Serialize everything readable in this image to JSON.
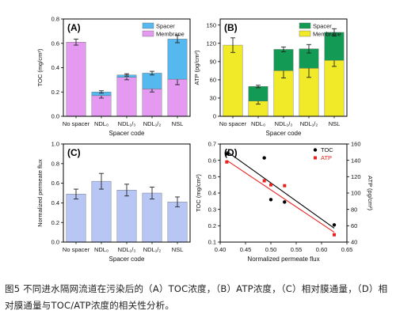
{
  "caption": "图5 不同进水隔网流道在污染后的（A）TOC浓度，（B）ATP浓度，（C）相对膜通量，（D）相对膜通量与TOC/ATP浓度的相关性分析。",
  "chart_data": [
    {
      "panel_label": "(A)",
      "type": "bar",
      "stacked": true,
      "categories": [
        "No spacer",
        "NDL₀",
        "NDL₁/₃",
        "NDL₁/₂",
        "NSL"
      ],
      "series": [
        {
          "name": "Membrane",
          "color": "#e49af0",
          "values": [
            0.61,
            0.17,
            0.32,
            0.225,
            0.305
          ],
          "error": [
            0.025,
            0.02,
            0.02,
            0.025,
            0.045
          ]
        },
        {
          "name": "Spacer",
          "color": "#55b8ee",
          "values": [
            0,
            0.03,
            0.02,
            0.13,
            0.33
          ],
          "error": [
            0,
            0.01,
            0.01,
            0.015,
            0.03
          ]
        }
      ],
      "xlabel": "Spacer code",
      "ylabel": "TOC (mg/cm²)",
      "ylim": [
        0,
        0.8
      ],
      "yticks": [
        "0.0",
        "0.2",
        "0.4",
        "0.6",
        "0.8"
      ],
      "legend": "top-right"
    },
    {
      "panel_label": "(B)",
      "type": "bar",
      "stacked": true,
      "categories": [
        "No spacer",
        "NDL₀",
        "NDL₁/₃",
        "NDL₁/₂",
        "NSL"
      ],
      "series": [
        {
          "name": "Membrane",
          "color": "#f0ea28",
          "values": [
            117,
            25,
            75,
            79,
            92
          ],
          "error": [
            12,
            5,
            12,
            15,
            10
          ]
        },
        {
          "name": "Spacer",
          "color": "#139a54",
          "values": [
            0,
            24,
            35,
            32,
            46
          ],
          "error": [
            0,
            2,
            4,
            7,
            6
          ]
        }
      ],
      "xlabel": "Spacer code",
      "ylabel": "ATP (pg/cm²)",
      "ylim": [
        0,
        160
      ],
      "yticks": [
        "0",
        "30",
        "60",
        "90",
        "120",
        "150"
      ],
      "legend": "top-right"
    },
    {
      "panel_label": "(C)",
      "type": "bar",
      "categories": [
        "No spacer",
        "NDL₀",
        "NDL₁/₃",
        "NDL₁/₂",
        "NSL"
      ],
      "series": [
        {
          "name": "",
          "color": "#b7c6f4",
          "values": [
            0.49,
            0.62,
            0.53,
            0.5,
            0.41
          ],
          "error": [
            0.05,
            0.08,
            0.06,
            0.06,
            0.05
          ]
        }
      ],
      "xlabel": "Spacer code",
      "ylabel": "Normalized permeate flux",
      "ylim": [
        0,
        1.0
      ],
      "yticks": [
        "0.0",
        "0.2",
        "0.4",
        "0.6",
        "0.8",
        "1.0"
      ]
    },
    {
      "panel_label": "(D)",
      "type": "scatter",
      "xlabel": "Normalized permeate flux",
      "ylabel": "TOC (mg/cm²)",
      "ylabel_right": "ATP (pg/cm²)",
      "xlim": [
        0.4,
        0.65
      ],
      "ylim": [
        0.1,
        0.7
      ],
      "ylim_right": [
        40,
        160
      ],
      "xticks": [
        "0.40",
        "0.45",
        "0.50",
        "0.55",
        "0.60",
        "0.65"
      ],
      "yticks": [
        "0.1",
        "0.2",
        "0.3",
        "0.4",
        "0.5",
        "0.6",
        "0.7"
      ],
      "yticks_right": [
        "40",
        "60",
        "80",
        "100",
        "120",
        "140",
        "160"
      ],
      "series": [
        {
          "name": "TOC",
          "color": "#000000",
          "marker": "circle",
          "axis": "left",
          "x": [
            0.413,
            0.487,
            0.5,
            0.527,
            0.625
          ],
          "y": [
            0.64,
            0.615,
            0.36,
            0.345,
            0.205
          ],
          "fit": [
            [
              0.413,
              0.655
            ],
            [
              0.625,
              0.185
            ]
          ]
        },
        {
          "name": "ATP",
          "color": "#e8221e",
          "marker": "square",
          "axis": "right",
          "x": [
            0.413,
            0.487,
            0.5,
            0.527,
            0.625
          ],
          "y": [
            138,
            115,
            110,
            109,
            49
          ],
          "fit": [
            [
              0.413,
              140
            ],
            [
              0.625,
              52
            ]
          ]
        }
      ],
      "legend": "top-right"
    }
  ]
}
